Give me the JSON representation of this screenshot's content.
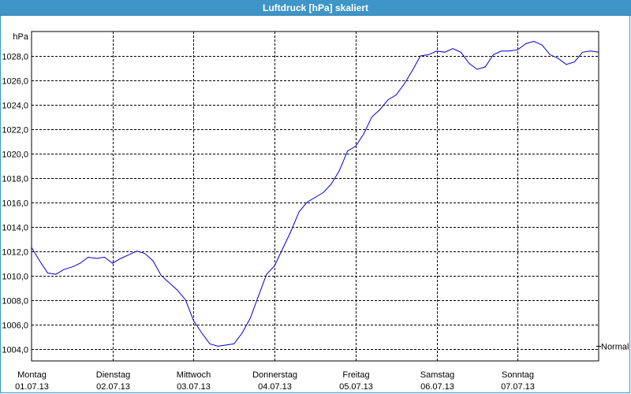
{
  "window": {
    "title": "Luftdruck [hPa] skaliert"
  },
  "colors": {
    "title_bar": "#3d95c8",
    "series_line": "#0000cc",
    "grid": "#000000"
  },
  "chart_data": {
    "type": "line",
    "title": "Luftdruck [hPa] skaliert",
    "ylabel": "hPa",
    "xlabel": "",
    "ylim": [
      1003.0,
      1030.0
    ],
    "xlim": [
      0,
      7
    ],
    "y_ticks": [
      1004.0,
      1006.0,
      1008.0,
      1010.0,
      1012.0,
      1014.0,
      1016.0,
      1018.0,
      1020.0,
      1022.0,
      1024.0,
      1026.0,
      1028.0
    ],
    "y_tick_labels": [
      "1004,0",
      "1006,0",
      "1008,0",
      "1010,0",
      "1012,0",
      "1014,0",
      "1016,0",
      "1018,0",
      "1020,0",
      "1022,0",
      "1024,0",
      "1026,0",
      "1028,0"
    ],
    "x_ticks": [
      {
        "day": "Montag",
        "date": "01.07.13"
      },
      {
        "day": "Dienstag",
        "date": "02.07.13"
      },
      {
        "day": "Mittwoch",
        "date": "03.07.13"
      },
      {
        "day": "Donnerstag",
        "date": "04.07.13"
      },
      {
        "day": "Freitag",
        "date": "05.07.13"
      },
      {
        "day": "Samstag",
        "date": "06.07.13"
      },
      {
        "day": "Sonntag",
        "date": "07.07.13"
      }
    ],
    "grid": true,
    "reference_line": {
      "label": "Normal",
      "value": 1004.2
    },
    "series": [
      {
        "color": "#0000cc",
        "x": [
          0,
          0.1,
          0.2,
          0.3,
          0.4,
          0.5,
          0.6,
          0.7,
          0.8,
          0.9,
          1.0,
          1.1,
          1.2,
          1.3,
          1.4,
          1.5,
          1.6,
          1.7,
          1.8,
          1.9,
          2.0,
          2.1,
          2.2,
          2.3,
          2.4,
          2.5,
          2.6,
          2.7,
          2.8,
          2.9,
          3.0,
          3.1,
          3.2,
          3.3,
          3.4,
          3.5,
          3.6,
          3.7,
          3.8,
          3.9,
          4.0,
          4.1,
          4.2,
          4.3,
          4.4,
          4.5,
          4.6,
          4.7,
          4.8,
          4.9,
          5.0,
          5.1,
          5.2,
          5.3,
          5.4,
          5.5,
          5.6,
          5.7,
          5.8,
          5.9,
          6.0,
          6.1,
          6.2,
          6.3,
          6.4,
          6.5,
          6.6,
          6.7,
          6.8,
          6.9,
          7.0
        ],
        "values": [
          1012.3,
          1011.2,
          1010.2,
          1010.1,
          1010.5,
          1010.7,
          1011.0,
          1011.5,
          1011.4,
          1011.5,
          1011.0,
          1011.4,
          1011.7,
          1012.0,
          1011.8,
          1011.2,
          1010.0,
          1009.4,
          1008.8,
          1008.0,
          1006.3,
          1005.3,
          1004.4,
          1004.2,
          1004.3,
          1004.4,
          1005.3,
          1006.5,
          1008.3,
          1010.1,
          1010.8,
          1012.2,
          1013.6,
          1015.2,
          1016.0,
          1016.4,
          1016.8,
          1017.5,
          1018.6,
          1020.2,
          1020.6,
          1021.6,
          1023.0,
          1023.6,
          1024.4,
          1024.8,
          1025.7,
          1026.8,
          1028.0,
          1028.1,
          1028.4,
          1028.3,
          1028.6,
          1028.3,
          1027.4,
          1026.9,
          1027.1,
          1028.1,
          1028.4,
          1028.4,
          1028.5,
          1029.0,
          1029.2,
          1028.9,
          1028.1,
          1027.8,
          1027.3,
          1027.5,
          1028.3,
          1028.4,
          1028.3
        ]
      }
    ]
  }
}
